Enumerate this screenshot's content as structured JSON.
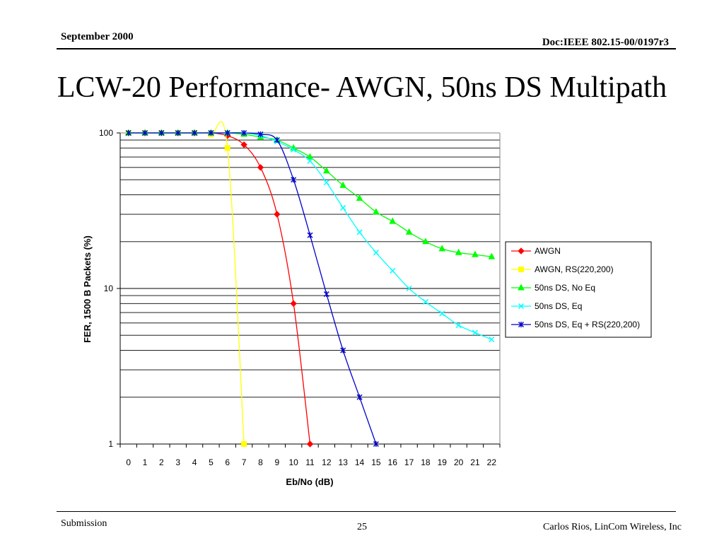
{
  "header": {
    "date": "September  2000",
    "doc": "Doc:IEEE 802.15-00/0197r3"
  },
  "slide": {
    "title": "LCW-20 Performance- AWGN, 50ns DS Multipath"
  },
  "footer": {
    "left": "Submission",
    "page": "25",
    "author": "Carlos Rios, LinCom Wireless, Inc"
  },
  "chart_data": {
    "type": "line",
    "xlabel": "Eb/No (dB)",
    "ylabel": "FER, 1500 B Packets (%)",
    "yscale": "log",
    "ylim": [
      1,
      100
    ],
    "yticks": [
      1,
      10,
      100
    ],
    "ytick_labels": [
      "1",
      "10",
      "100"
    ],
    "xticks": [
      0,
      1,
      2,
      3,
      4,
      5,
      6,
      7,
      8,
      9,
      10,
      11,
      12,
      13,
      14,
      15,
      16,
      17,
      18,
      19,
      20,
      21,
      22
    ],
    "xlim": [
      0,
      22
    ],
    "grid": "horizontal",
    "legend": "right",
    "series": [
      {
        "name": "AWGN",
        "color": "#ff0000",
        "marker": "diamond",
        "x": [
          0,
          1,
          2,
          3,
          4,
          5,
          6,
          7,
          8,
          9,
          10,
          11
        ],
        "y": [
          100,
          100,
          100,
          100,
          100,
          100,
          96,
          84,
          60,
          30,
          8,
          1
        ]
      },
      {
        "name": "AWGN, RS(220,200)",
        "color": "#ffff00",
        "marker": "square",
        "x": [
          0,
          1,
          2,
          3,
          4,
          5,
          6,
          7
        ],
        "y": [
          100,
          100,
          100,
          100,
          100,
          98,
          80,
          1
        ]
      },
      {
        "name": "50ns DS, No Eq",
        "color": "#00ff00",
        "marker": "triangle",
        "x": [
          0,
          1,
          2,
          3,
          4,
          5,
          6,
          7,
          8,
          9,
          10,
          11,
          12,
          13,
          14,
          15,
          16,
          17,
          18,
          19,
          20,
          21,
          22
        ],
        "y": [
          100,
          100,
          100,
          100,
          100,
          100,
          100,
          98,
          94,
          90,
          80,
          70,
          57,
          46,
          38,
          31,
          27,
          23,
          20,
          18,
          17,
          16.5,
          16
        ]
      },
      {
        "name": "50ns DS, Eq",
        "color": "#00ffff",
        "marker": "x",
        "x": [
          0,
          1,
          2,
          3,
          4,
          5,
          6,
          7,
          8,
          9,
          10,
          11,
          12,
          13,
          14,
          15,
          16,
          17,
          18,
          19,
          20,
          21,
          22
        ],
        "y": [
          100,
          100,
          100,
          100,
          100,
          100,
          100,
          100,
          96,
          88,
          78,
          66,
          48,
          33,
          23,
          17,
          13,
          10,
          8.2,
          6.9,
          5.8,
          5.2,
          4.7
        ]
      },
      {
        "name": "50ns DS, Eq + RS(220,200)",
        "color": "#0000cc",
        "marker": "star",
        "x": [
          0,
          1,
          2,
          3,
          4,
          5,
          6,
          7,
          8,
          9,
          10,
          11,
          12,
          13,
          14,
          15
        ],
        "y": [
          100,
          100,
          100,
          100,
          100,
          100,
          100,
          100,
          98,
          90,
          50,
          22,
          9.2,
          4,
          2,
          1
        ]
      }
    ]
  }
}
